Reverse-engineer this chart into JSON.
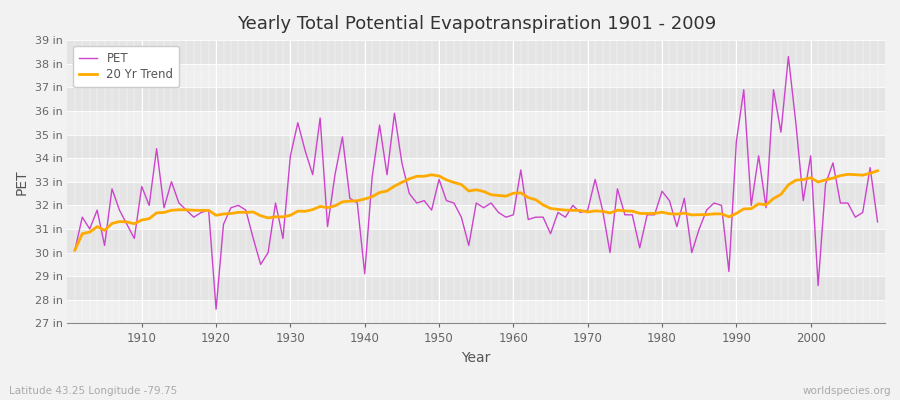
{
  "title": "Yearly Total Potential Evapotranspiration 1901 - 2009",
  "xlabel": "Year",
  "ylabel": "PET",
  "subtitle_left": "Latitude 43.25 Longitude -79.75",
  "subtitle_right": "worldspecies.org",
  "pet_color": "#cc44cc",
  "trend_color": "#ffaa00",
  "fig_bg_color": "#f0f0f0",
  "plot_bg_color": "#e8e8e8",
  "band_light": "#ebebeb",
  "band_dark": "#e0e0e0",
  "grid_color": "#ffffff",
  "ylim_min": 27,
  "ylim_max": 39,
  "xlim_min": 1901,
  "xlim_max": 2009,
  "years": [
    1901,
    1902,
    1903,
    1904,
    1905,
    1906,
    1907,
    1908,
    1909,
    1910,
    1911,
    1912,
    1913,
    1914,
    1915,
    1916,
    1917,
    1918,
    1919,
    1920,
    1921,
    1922,
    1923,
    1924,
    1925,
    1926,
    1927,
    1928,
    1929,
    1930,
    1931,
    1932,
    1933,
    1934,
    1935,
    1936,
    1937,
    1938,
    1939,
    1940,
    1941,
    1942,
    1943,
    1944,
    1945,
    1946,
    1947,
    1948,
    1949,
    1950,
    1951,
    1952,
    1953,
    1954,
    1955,
    1956,
    1957,
    1958,
    1959,
    1960,
    1961,
    1962,
    1963,
    1964,
    1965,
    1966,
    1967,
    1968,
    1969,
    1970,
    1971,
    1972,
    1973,
    1974,
    1975,
    1976,
    1977,
    1978,
    1979,
    1980,
    1981,
    1982,
    1983,
    1984,
    1985,
    1986,
    1987,
    1988,
    1989,
    1990,
    1991,
    1992,
    1993,
    1994,
    1995,
    1996,
    1997,
    1998,
    1999,
    2000,
    2001,
    2002,
    2003,
    2004,
    2005,
    2006,
    2007,
    2008,
    2009
  ],
  "pet_values": [
    30.1,
    31.5,
    31.0,
    31.8,
    30.3,
    32.7,
    31.8,
    31.2,
    30.6,
    32.8,
    32.0,
    34.4,
    31.9,
    33.0,
    32.1,
    31.8,
    31.5,
    31.7,
    31.8,
    27.6,
    31.2,
    31.9,
    32.0,
    31.8,
    30.6,
    29.5,
    30.0,
    32.1,
    30.6,
    34.1,
    35.5,
    34.3,
    33.3,
    35.7,
    31.1,
    33.3,
    34.9,
    32.3,
    32.1,
    29.1,
    33.2,
    35.4,
    33.3,
    35.9,
    33.8,
    32.5,
    32.1,
    32.2,
    31.8,
    33.1,
    32.2,
    32.1,
    31.5,
    30.3,
    32.1,
    31.9,
    32.1,
    31.7,
    31.5,
    31.6,
    33.5,
    31.4,
    31.5,
    31.5,
    30.8,
    31.7,
    31.5,
    32.0,
    31.7,
    31.8,
    33.1,
    31.8,
    30.0,
    32.7,
    31.6,
    31.6,
    30.2,
    31.6,
    31.6,
    32.6,
    32.2,
    31.1,
    32.3,
    30.0,
    31.0,
    31.8,
    32.1,
    32.0,
    29.2,
    34.7,
    36.9,
    32.0,
    34.1,
    31.9,
    36.9,
    35.1,
    38.3,
    35.5,
    32.2,
    34.1,
    28.6,
    32.9,
    33.8,
    32.1,
    32.1,
    31.5,
    31.7,
    33.6,
    31.3
  ],
  "trend_window": 20,
  "tick_years": [
    1910,
    1920,
    1930,
    1940,
    1950,
    1960,
    1970,
    1980,
    1990,
    2000
  ],
  "ytick_labels": [
    "27 in",
    "28 in",
    "29 in",
    "30 in",
    "31 in",
    "32 in",
    "33 in",
    "34 in",
    "35 in",
    "36 in",
    "37 in",
    "38 in",
    "39 in"
  ],
  "ytick_values": [
    27,
    28,
    29,
    30,
    31,
    32,
    33,
    34,
    35,
    36,
    37,
    38,
    39
  ]
}
